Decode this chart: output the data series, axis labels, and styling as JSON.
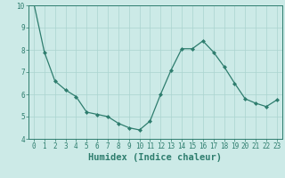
{
  "x": [
    0,
    1,
    2,
    3,
    4,
    5,
    6,
    7,
    8,
    9,
    10,
    11,
    12,
    13,
    14,
    15,
    16,
    17,
    18,
    19,
    20,
    21,
    22,
    23
  ],
  "y": [
    10.1,
    7.9,
    6.6,
    6.2,
    5.9,
    5.2,
    5.1,
    5.0,
    4.7,
    4.5,
    4.4,
    4.8,
    6.0,
    7.1,
    8.05,
    8.05,
    8.4,
    7.9,
    7.25,
    6.5,
    5.8,
    5.6,
    5.45,
    5.75
  ],
  "line_color": "#2e7d6e",
  "marker": "D",
  "marker_size": 2.0,
  "bg_color": "#cceae7",
  "grid_color": "#aad4d0",
  "xlabel": "Humidex (Indice chaleur)",
  "ylim": [
    4,
    10
  ],
  "xlim": [
    -0.5,
    23.5
  ],
  "yticks": [
    4,
    5,
    6,
    7,
    8,
    9,
    10
  ],
  "xticks": [
    0,
    1,
    2,
    3,
    4,
    5,
    6,
    7,
    8,
    9,
    10,
    11,
    12,
    13,
    14,
    15,
    16,
    17,
    18,
    19,
    20,
    21,
    22,
    23
  ],
  "tick_label_fontsize": 5.5,
  "xlabel_fontsize": 7.5
}
